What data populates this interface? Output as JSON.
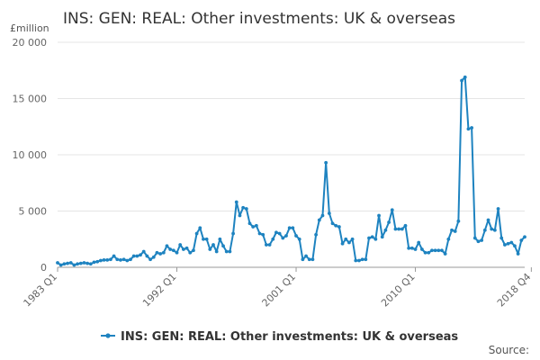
{
  "chart_data": {
    "type": "line",
    "title": "INS: GEN: REAL: Other investments: UK & overseas",
    "y_unit": "£million",
    "xlabel": "",
    "ylabel": "",
    "ylim": [
      0,
      20000
    ],
    "y_ticks": [
      0,
      5000,
      10000,
      15000,
      20000
    ],
    "y_tick_labels": [
      "0",
      "5 000",
      "10 000",
      "15 000",
      "20 000"
    ],
    "x_tick_labels": [
      "1983 Q1",
      "1992 Q1",
      "2001 Q1",
      "2010 Q1",
      "2018 Q4"
    ],
    "x_tick_index": [
      0,
      36,
      72,
      108,
      143
    ],
    "grid": true,
    "legend_position": "bottom",
    "color": "#1e83c0",
    "series": [
      {
        "name": "INS: GEN: REAL: Other investments: UK & overseas",
        "values": [
          400,
          200,
          300,
          350,
          400,
          200,
          300,
          350,
          400,
          350,
          300,
          450,
          500,
          600,
          650,
          650,
          700,
          1000,
          700,
          650,
          700,
          600,
          700,
          1000,
          1000,
          1100,
          1400,
          1000,
          700,
          900,
          1300,
          1200,
          1300,
          1900,
          1600,
          1500,
          1300,
          2000,
          1600,
          1700,
          1300,
          1500,
          3000,
          3500,
          2500,
          2500,
          1600,
          2000,
          1400,
          2500,
          1900,
          1400,
          1400,
          3000,
          5800,
          4600,
          5300,
          5200,
          3900,
          3600,
          3700,
          3000,
          2900,
          2000,
          2000,
          2500,
          3100,
          3000,
          2600,
          2800,
          3500,
          3500,
          2800,
          2500,
          700,
          1000,
          700,
          700,
          2900,
          4200,
          4600,
          9300,
          4800,
          3900,
          3700,
          3600,
          2100,
          2500,
          2200,
          2500,
          600,
          600,
          700,
          700,
          2600,
          2700,
          2500,
          4600,
          2700,
          3300,
          4000,
          5100,
          3400,
          3400,
          3400,
          3700,
          1700,
          1700,
          1600,
          2200,
          1600,
          1300,
          1300,
          1500,
          1500,
          1500,
          1500,
          1200,
          2500,
          3300,
          3200,
          4100,
          16600,
          16900,
          12300,
          12400,
          2600,
          2300,
          2400,
          3300,
          4200,
          3400,
          3300,
          5200,
          2600,
          2000,
          2100,
          2200,
          1900,
          1200,
          2400,
          2700
        ]
      }
    ]
  },
  "footer": {
    "source_label": "Source:"
  }
}
